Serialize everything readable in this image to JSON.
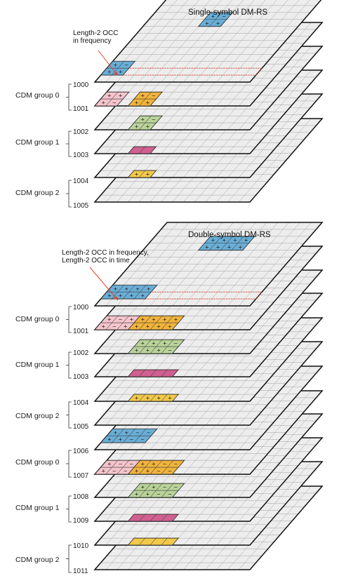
{
  "top": {
    "title": "Single-symbol DM-RS",
    "annotation": [
      "Length-2 OCC",
      "in frequency"
    ],
    "groups": [
      {
        "label": "CDM group 0",
        "ports": [
          "1000",
          "1001"
        ]
      },
      {
        "label": "CDM group 1",
        "ports": [
          "1002",
          "1003"
        ]
      },
      {
        "label": "CDM group 2",
        "ports": [
          "1004",
          "1005"
        ]
      }
    ]
  },
  "bottom": {
    "title": "Double-symbol DM-RS",
    "annotation": [
      "Length-2 OCC in frequency,",
      "Length-2 OCC in time"
    ],
    "groups": [
      {
        "label": "CDM group 0",
        "ports": [
          "1000",
          "1001"
        ]
      },
      {
        "label": "CDM group 1",
        "ports": [
          "1002",
          "1003"
        ]
      },
      {
        "label": "CDM group 2",
        "ports": [
          "1004",
          "1005"
        ]
      },
      {
        "label": "CDM group 0",
        "ports": [
          "1006",
          "1007"
        ]
      },
      {
        "label": "CDM group 1",
        "ports": [
          "1008",
          "1009"
        ]
      },
      {
        "label": "CDM group 2",
        "ports": [
          "1010",
          "1011"
        ]
      }
    ]
  },
  "colors": {
    "plane_fill": "#ededed",
    "grid_line": "#9a9a9a",
    "arrow": "#e8402a",
    "cdm_group_0": "#6aaed6",
    "cdm_group_1": "#b9d39a",
    "cdm_group_2": "#f3c94a",
    "port_pink": "#f4c4cc",
    "port_orange": "#f0b43c",
    "port_magenta": "#d06090"
  }
}
